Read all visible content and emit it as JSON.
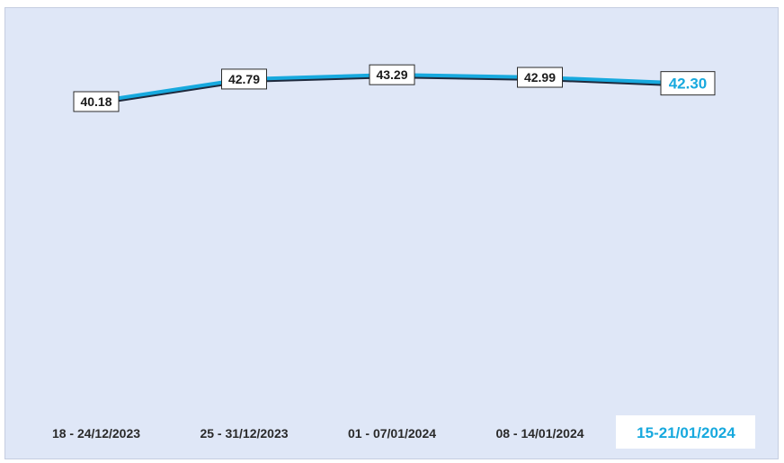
{
  "chart_data": {
    "type": "line",
    "categories": [
      "18 - 24/12/2023",
      "25 - 31/12/2023",
      "01 - 07/01/2024",
      "08 - 14/01/2024",
      "15-21/01/2024"
    ],
    "values": [
      40.18,
      42.79,
      43.29,
      42.99,
      42.3
    ],
    "value_labels": [
      "40.18",
      "42.79",
      "43.29",
      "42.99",
      "42.30"
    ],
    "highlighted_index": 4,
    "grid": false,
    "legend": "none"
  },
  "colors": {
    "background": "#dfe7f7",
    "line": "#17a9de",
    "line_shadow": "#1f2a3d",
    "highlight": "#17a9de",
    "label_text": "#1b1b1b"
  }
}
